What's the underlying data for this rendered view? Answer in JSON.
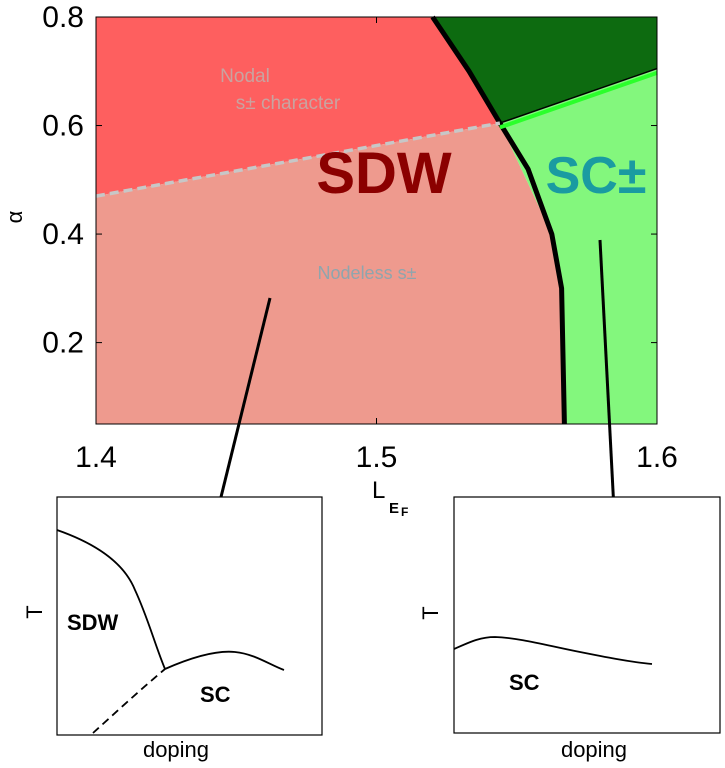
{
  "chart_data": [
    {
      "type": "area",
      "xlabel": "L",
      "xlabel_subscript": "E",
      "xlabel_subsubscript": "F",
      "ylabel": "α",
      "xlim": [
        1.4,
        1.6
      ],
      "ylim": [
        0.05,
        0.8
      ],
      "x_ticks": [
        1.4,
        1.5,
        1.6
      ],
      "x_tick_labels": [
        "1.4",
        "1.5",
        "1.6"
      ],
      "y_ticks": [
        0.2,
        0.4,
        0.6,
        0.8
      ],
      "y_tick_labels": [
        "0.2",
        "0.4",
        "0.6",
        "0.8"
      ],
      "regions": [
        {
          "name": "Nodal s± character",
          "color": "#fe5f5f",
          "boundary": [
            [
              1.4,
              0.8
            ],
            [
              1.52,
              0.8
            ],
            [
              1.544,
              0.6045
            ],
            [
              1.4,
              0.47
            ]
          ]
        },
        {
          "name": "Nodeless s±",
          "color": "#ee9a8e",
          "boundary": [
            [
              1.4,
              0.47
            ],
            [
              1.544,
              0.6045
            ],
            [
              1.5625,
              0.4
            ],
            [
              1.566,
              0.3
            ],
            [
              1.567,
              0.05
            ],
            [
              1.4,
              0.05
            ]
          ]
        },
        {
          "name": "dark green region",
          "color": "#0d6b10",
          "boundary": [
            [
              1.52,
              0.8
            ],
            [
              1.6,
              0.8
            ],
            [
              1.6,
              0.705
            ],
            [
              1.544,
              0.6045
            ]
          ]
        },
        {
          "name": "SC±",
          "color": "#83f77d",
          "boundary": [
            [
              1.544,
              0.6045
            ],
            [
              1.6,
              0.705
            ],
            [
              1.6,
              0.05
            ],
            [
              1.567,
              0.05
            ],
            [
              1.566,
              0.3
            ],
            [
              1.5625,
              0.4
            ]
          ]
        }
      ],
      "boundaries": [
        {
          "kind": "solid-black",
          "points": [
            [
              1.52,
              0.8
            ],
            [
              1.533,
              0.7
            ],
            [
              1.544,
              0.6045
            ],
            [
              1.554,
              0.52
            ],
            [
              1.5625,
              0.4
            ],
            [
              1.566,
              0.3
            ],
            [
              1.567,
              0.05
            ]
          ]
        },
        {
          "kind": "thin-black",
          "points": [
            [
              1.544,
              0.6045
            ],
            [
              1.6,
              0.705
            ]
          ]
        },
        {
          "kind": "dashed-gray",
          "points": [
            [
              1.4,
              0.47
            ],
            [
              1.47,
              0.535
            ],
            [
              1.544,
              0.6045
            ]
          ]
        },
        {
          "kind": "bright-green",
          "points": [
            [
              1.544,
              0.6045
            ],
            [
              1.6,
              0.705
            ]
          ]
        }
      ],
      "labels": {
        "sdw": "SDW",
        "sc_pm": "SC±",
        "nodal_line1": "Nodal",
        "nodal_line2": "s± character",
        "nodeless": "Nodeless s±"
      },
      "label_colors": {
        "sdw": "#8b0000",
        "sc_pm": "#1a9ba1",
        "nodal": "#c9a3a0",
        "nodeless": "#8fa5ad"
      }
    },
    {
      "type": "line",
      "xlabel": "doping",
      "ylabel": "T",
      "series": [
        {
          "kind": "solid",
          "x": [
            0,
            0.13,
            0.22,
            0.28,
            0.33,
            0.36,
            0.4,
            0.42
          ],
          "y": [
            1.0,
            0.92,
            0.78,
            0.58,
            0.32,
            0.18,
            0.05,
            0.0
          ]
        },
        {
          "kind": "dashed",
          "x": [
            0.0,
            0.12,
            0.25,
            0.42
          ],
          "y": [
            -0.95,
            -0.72,
            -0.45,
            -0.25
          ]
        },
        {
          "kind": "solid",
          "x": [
            0.42,
            0.55,
            0.68,
            0.78,
            0.85
          ],
          "y": [
            0.0,
            0.1,
            0.15,
            0.05,
            -0.02
          ]
        }
      ],
      "labels": {
        "sdw": "SDW",
        "sc": "SC"
      }
    },
    {
      "type": "line",
      "xlabel": "doping",
      "ylabel": "T",
      "series": [
        {
          "kind": "solid",
          "x": [
            0,
            0.1,
            0.2,
            0.4,
            0.6,
            0.8,
            0.98
          ],
          "y": [
            1.0,
            1.07,
            1.09,
            1.0,
            0.88,
            0.76,
            0.66
          ]
        }
      ],
      "labels": {
        "sc": "SC"
      }
    }
  ]
}
